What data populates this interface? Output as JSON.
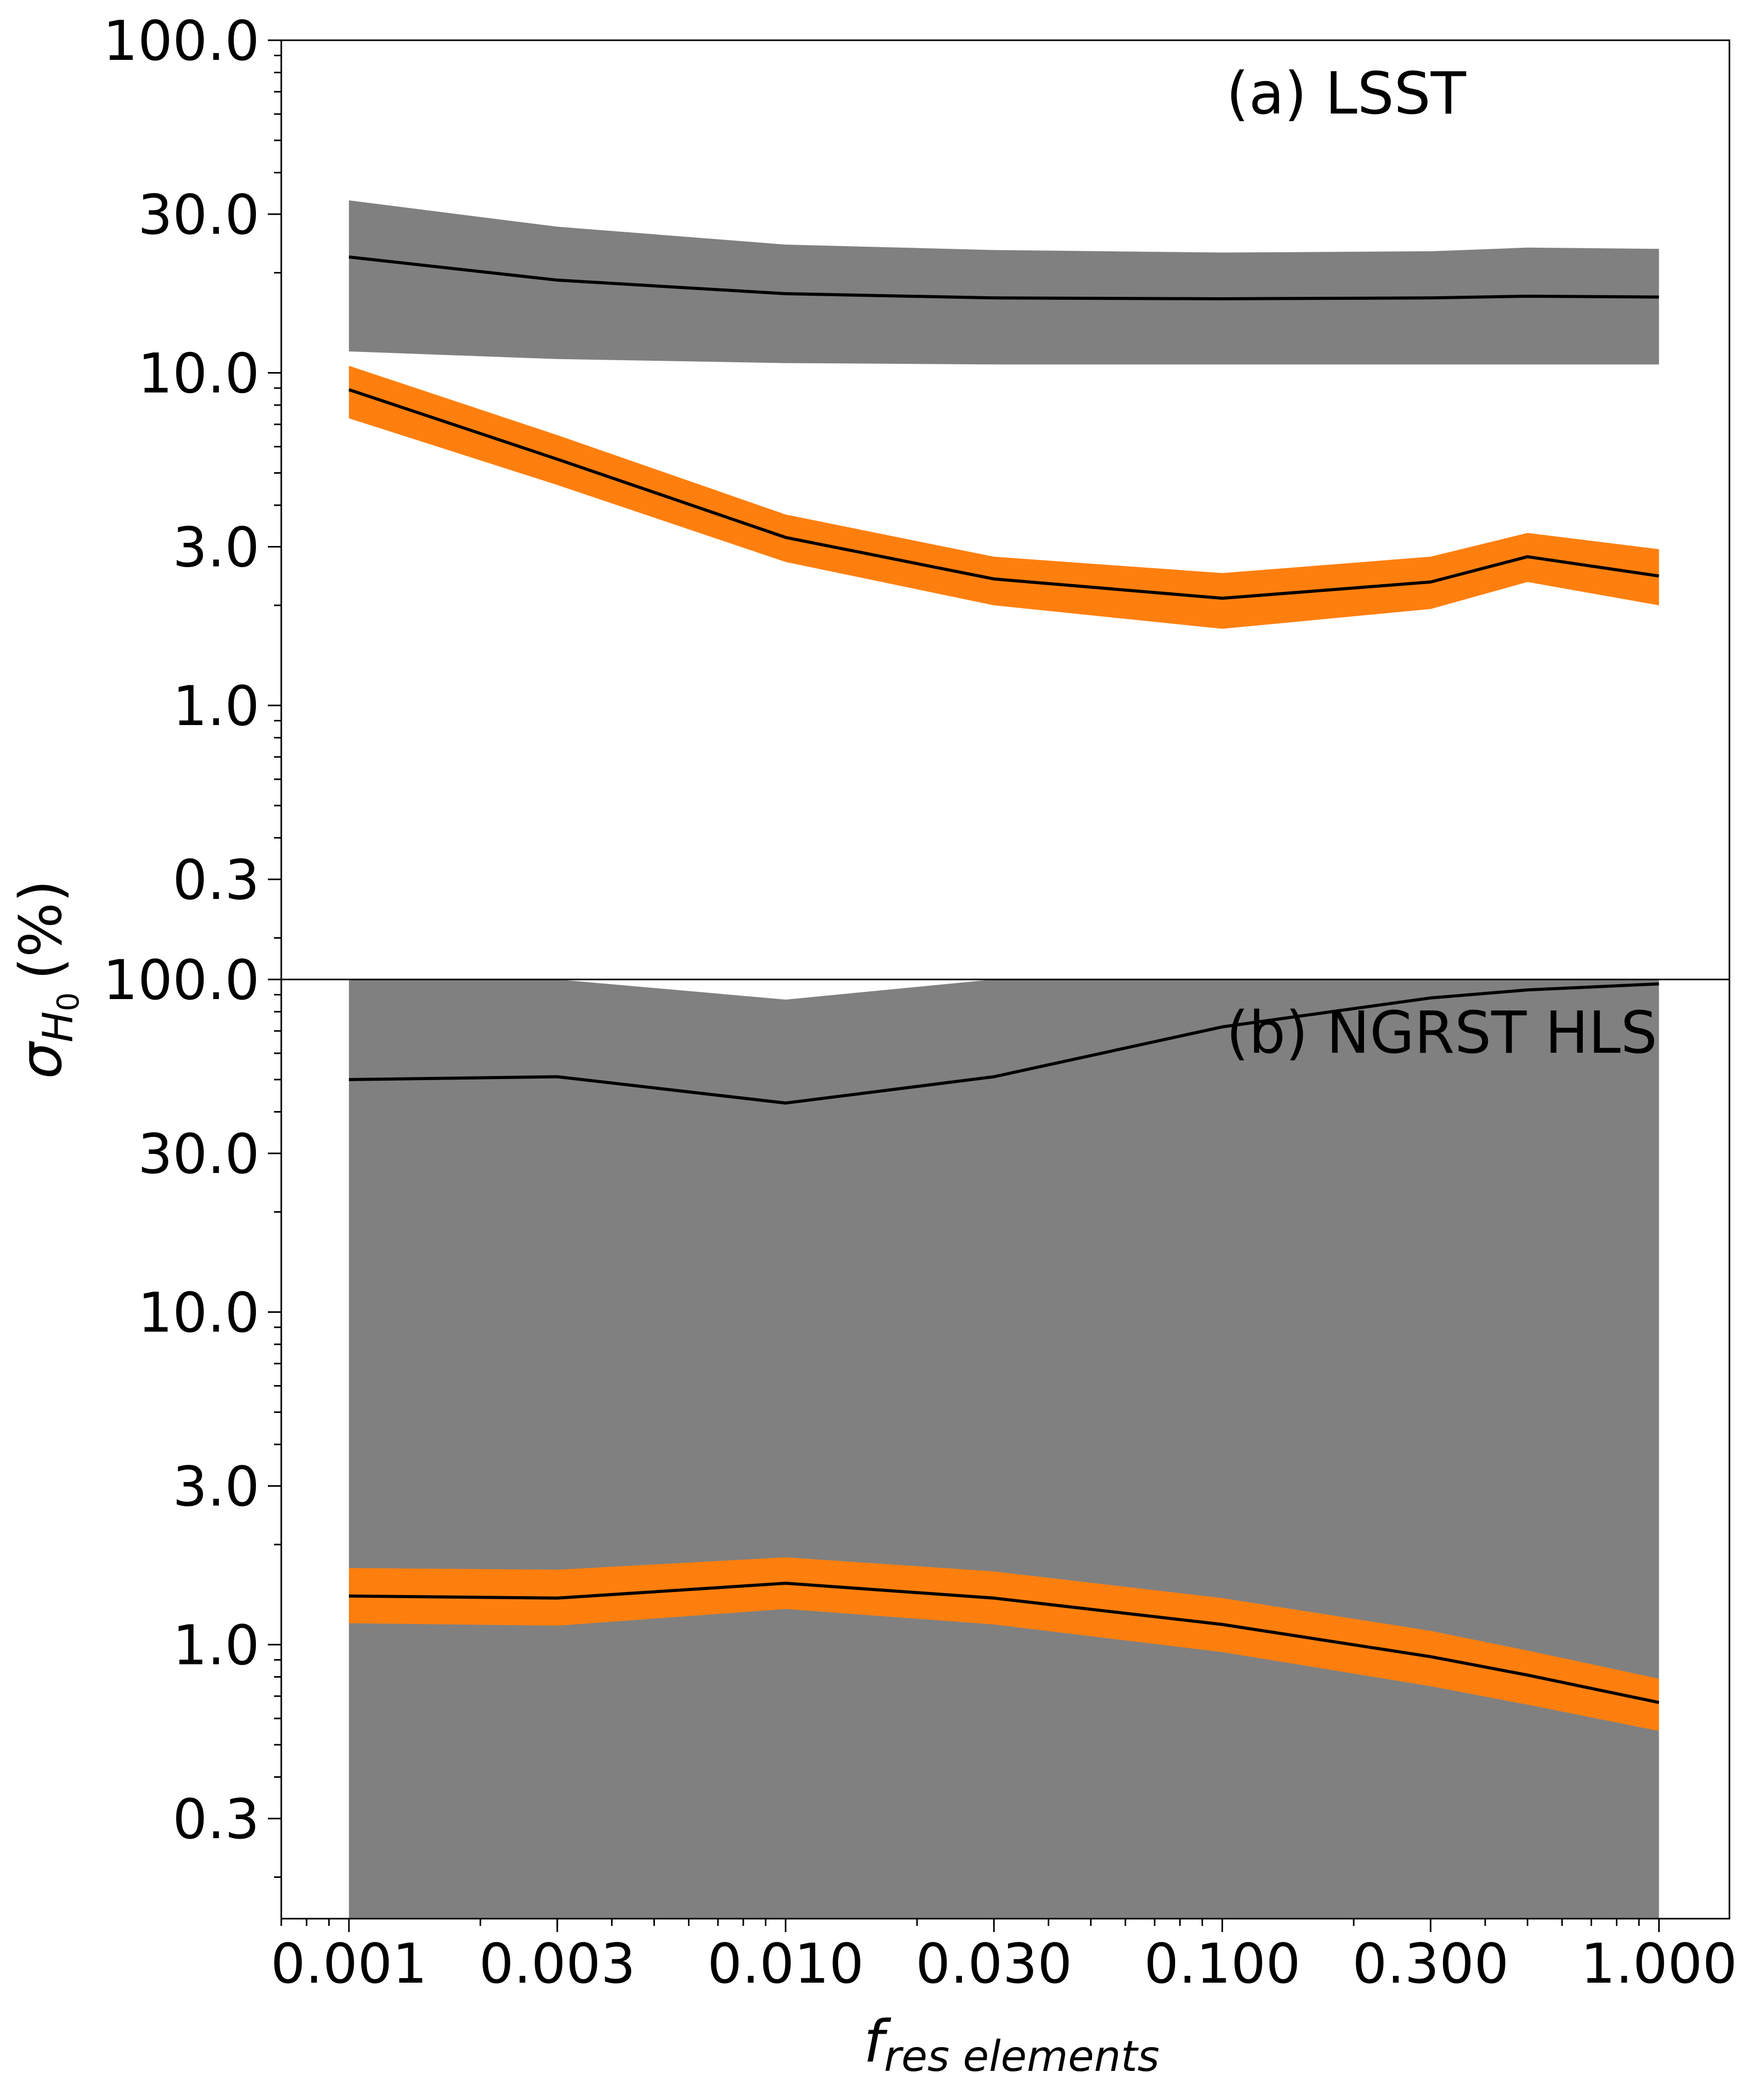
{
  "chart_data": {
    "type": "area",
    "xlabel": "f",
    "xlabel_subscript": "res elements",
    "ylabel": "σ",
    "ylabel_subscript": "H",
    "ylabel_subsubscript": "0",
    "ylabel_unit": "(%)",
    "x_scale": "log",
    "y_scale": "log",
    "xlim": [
      0.0007,
      1.45
    ],
    "x_ticks": [
      0.001,
      0.003,
      0.01,
      0.03,
      0.1,
      0.3,
      1.0
    ],
    "x_tick_labels": [
      "0.001",
      "0.003",
      "0.010",
      "0.030",
      "0.100",
      "0.300",
      "1.000"
    ],
    "shared_x": true,
    "grid": false,
    "colors": {
      "gray_band": "#808080",
      "orange_band": "#ff7f0e",
      "line": "#000000"
    },
    "panels": [
      {
        "label": "(a) LSST",
        "ylim": [
          0.15,
          100
        ],
        "y_ticks": [
          0.3,
          1.0,
          3.0,
          10.0,
          30.0,
          100.0
        ],
        "y_tick_labels": [
          "0.3",
          "1.0",
          "3.0",
          "10.0",
          "30.0",
          "100.0"
        ],
        "x": [
          0.001,
          0.003,
          0.01,
          0.03,
          0.1,
          0.3,
          0.5,
          1.0
        ],
        "series": [
          {
            "color": "gray",
            "median": [
              22.3,
              19.0,
              17.3,
              16.8,
              16.7,
              16.8,
              17.0,
              16.9
            ],
            "lower": [
              11.6,
              11.0,
              10.7,
              10.6,
              10.6,
              10.6,
              10.6,
              10.6
            ],
            "upper": [
              33.0,
              27.5,
              24.3,
              23.4,
              23.0,
              23.2,
              23.8,
              23.6
            ]
          },
          {
            "color": "orange",
            "median": [
              8.9,
              5.5,
              3.2,
              2.4,
              2.1,
              2.35,
              2.8,
              2.45
            ],
            "lower": [
              7.3,
              4.6,
              2.7,
              2.0,
              1.7,
              1.95,
              2.35,
              2.0
            ],
            "upper": [
              10.5,
              6.5,
              3.75,
              2.8,
              2.5,
              2.8,
              3.3,
              2.95
            ]
          }
        ]
      },
      {
        "label": "(b) NGRST HLS",
        "ylim": [
          0.15,
          100
        ],
        "y_ticks": [
          0.3,
          1.0,
          3.0,
          10.0,
          30.0,
          100.0
        ],
        "y_tick_labels": [
          "0.3",
          "1.0",
          "3.0",
          "10.0",
          "30.0",
          "100.0"
        ],
        "x": [
          0.001,
          0.003,
          0.01,
          0.03,
          0.1,
          0.3,
          0.5,
          1.0
        ],
        "series": [
          {
            "color": "gray",
            "median": [
              50.0,
              51.0,
              42.5,
              51.0,
              72.0,
              88.0,
              93.0,
              97.0
            ],
            "lower": [
              0.15,
              0.15,
              0.15,
              0.15,
              0.15,
              0.15,
              0.15,
              0.15
            ],
            "upper": [
              100,
              100,
              87.0,
              100,
              100,
              100,
              100,
              100
            ]
          },
          {
            "color": "orange",
            "median": [
              1.4,
              1.38,
              1.53,
              1.38,
              1.15,
              0.92,
              0.81,
              0.67
            ],
            "lower": [
              1.16,
              1.14,
              1.28,
              1.15,
              0.95,
              0.75,
              0.66,
              0.55
            ],
            "upper": [
              1.7,
              1.68,
              1.83,
              1.66,
              1.38,
              1.1,
              0.96,
              0.79
            ]
          }
        ]
      }
    ]
  }
}
